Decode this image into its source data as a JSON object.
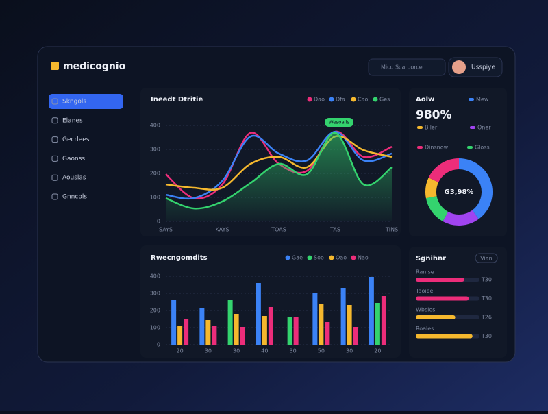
{
  "header": {
    "brand": "medicognio",
    "search": "Mico Scaroorce",
    "user": "Usspiye"
  },
  "sidebar": {
    "items": [
      "Skngols",
      "Elanes",
      "Gecrlees",
      "Gaonss",
      "Aouslas",
      "Gnncols"
    ]
  },
  "chart_data": [
    {
      "type": "line",
      "title": "Ineedt Dtritie",
      "annotation": "Wesoalls",
      "categories": [
        "SAYS",
        null,
        "KAYS",
        null,
        "TOAS",
        null,
        "TAS",
        null,
        "TINS"
      ],
      "series": [
        {
          "name": "Dao",
          "color": "#ec2d7a",
          "values": [
            197,
            97,
            154,
            369,
            240,
            211,
            374,
            269,
            311
          ]
        },
        {
          "name": "Dfa",
          "color": "#3b82f6",
          "values": [
            111,
            97,
            169,
            354,
            283,
            254,
            374,
            254,
            283
          ]
        },
        {
          "name": "Cao",
          "color": "#f5b82e",
          "values": [
            154,
            140,
            140,
            240,
            269,
            226,
            354,
            297,
            269
          ]
        },
        {
          "name": "Ges",
          "color": "#34d36e",
          "values": [
            97,
            54,
            83,
            160,
            240,
            197,
            369,
            154,
            226
          ],
          "area": true
        }
      ],
      "ylim": [
        0,
        400
      ],
      "yticks": [
        0,
        100,
        200,
        300,
        400
      ],
      "grid": true
    },
    {
      "type": "bar",
      "title": "Rwecngomdits",
      "categories": [
        "20",
        "30",
        "30",
        "40",
        "30",
        "50",
        "30",
        "20"
      ],
      "series": [
        {
          "name": "Gae",
          "color": "#3b82f6",
          "values": [
            264,
            212,
            null,
            360,
            null,
            304,
            332,
            396
          ]
        },
        {
          "name": "Soo",
          "color": "#34d36e",
          "values": [
            null,
            null,
            264,
            null,
            160,
            null,
            null,
            244
          ]
        },
        {
          "name": "Oao",
          "color": "#f5b82e",
          "values": [
            112,
            144,
            180,
            168,
            null,
            236,
            232,
            null
          ]
        },
        {
          "name": "Nao",
          "color": "#ec2d7a",
          "values": [
            152,
            108,
            104,
            220,
            160,
            132,
            104,
            284
          ]
        }
      ],
      "ylim": [
        0,
        400
      ],
      "yticks": [
        0,
        100,
        200,
        300,
        400
      ],
      "grid": true
    },
    {
      "type": "pie",
      "title": "Aolw",
      "headline": "980%",
      "center_label": "G3,98%",
      "categories": [
        "Mew",
        "Oner",
        "Gloss",
        "Biler",
        "Dinsnow"
      ],
      "values": [
        40,
        18,
        14,
        10,
        18
      ],
      "colors": [
        "#3b82f6",
        "#a044f0",
        "#34d36e",
        "#f5b82e",
        "#ec2d7a"
      ]
    },
    {
      "type": "hbar",
      "title": "Sgnihnr",
      "button": "Vian",
      "categories": [
        "Ranise",
        "Taoiee",
        "Wbsles",
        "Roales"
      ],
      "values": [
        76,
        83,
        62,
        89
      ],
      "tags": [
        "T30",
        "T30",
        "T26",
        "T30"
      ],
      "colors": [
        "#ec2d7a",
        "#ec2d7a",
        "#f5b82e",
        "#f5b82e"
      ],
      "xlim": [
        0,
        100
      ]
    }
  ]
}
